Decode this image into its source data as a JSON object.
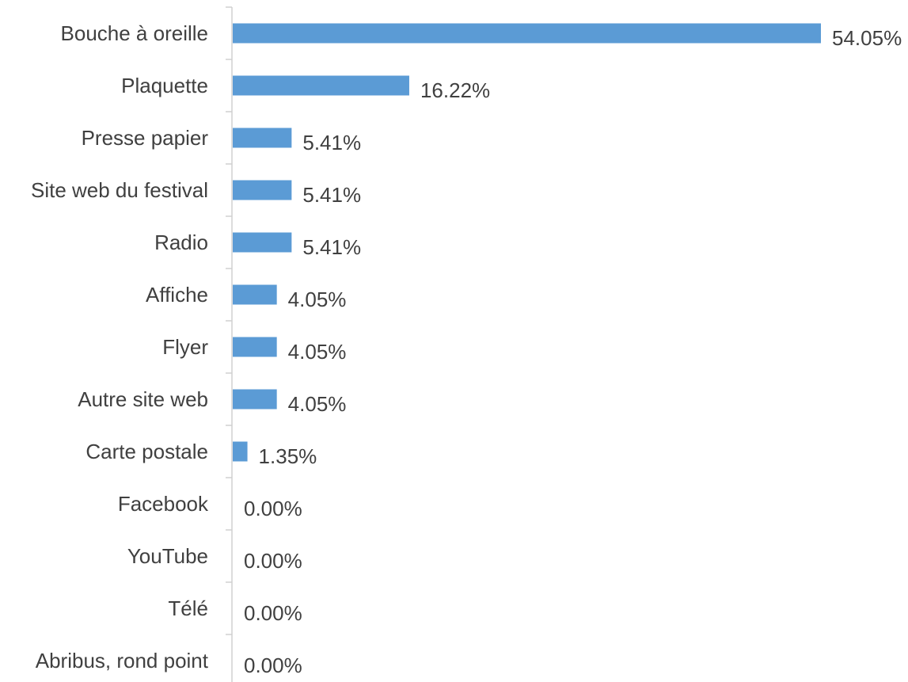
{
  "chart_data": {
    "type": "bar",
    "orientation": "horizontal",
    "title": "",
    "xlabel": "",
    "ylabel": "",
    "categories": [
      "Bouche à oreille",
      "Plaquette",
      "Presse papier",
      "Site web du festival",
      "Radio",
      "Affiche",
      "Flyer",
      "Autre site web",
      "Carte postale",
      "Facebook",
      "YouTube",
      "Télé",
      "Abribus, rond point"
    ],
    "values": [
      54.05,
      16.22,
      5.41,
      5.41,
      5.41,
      4.05,
      4.05,
      4.05,
      1.35,
      0.0,
      0.0,
      0.0,
      0.0
    ],
    "value_labels": [
      "54.05%",
      "16.22%",
      "5.41%",
      "5.41%",
      "5.41%",
      "4.05%",
      "4.05%",
      "4.05%",
      "1.35%",
      "0.00%",
      "0.00%",
      "0.00%",
      "0.00%"
    ],
    "unit": "%",
    "xlim": [
      0,
      54.05
    ],
    "grid": false,
    "legend": "none",
    "bar_color": "#5b9bd5",
    "axis_color": "#d0d0d0",
    "text_color": "#404040"
  }
}
